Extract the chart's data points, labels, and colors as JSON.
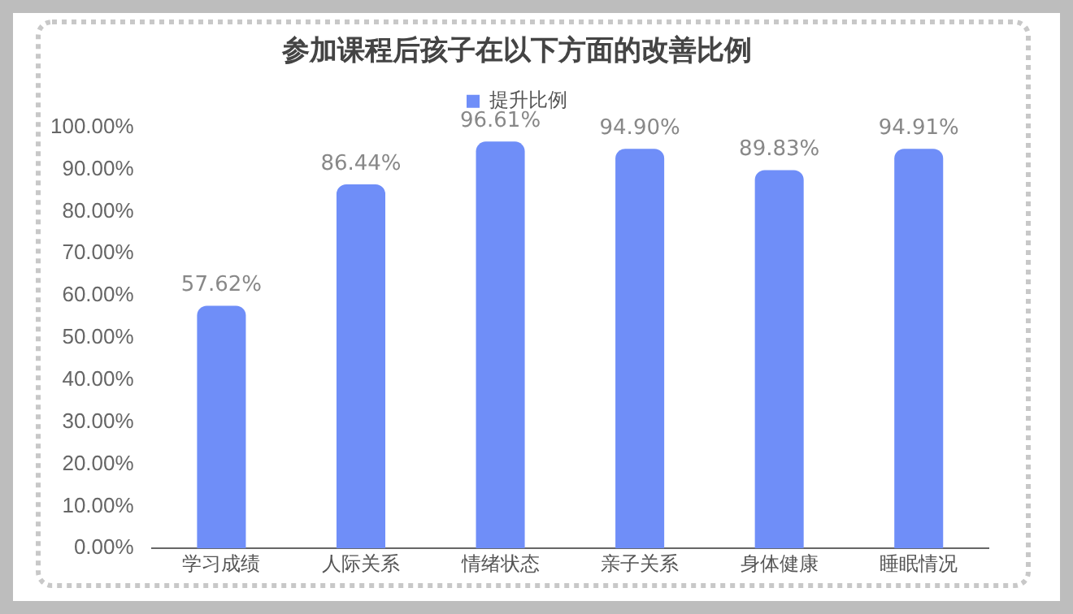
{
  "chart_data": {
    "type": "bar",
    "title": "参加课程后孩子在以下方面的改善比例",
    "categories": [
      "学习成绩",
      "人际关系",
      "情绪状态",
      "亲子关系",
      "身体健康",
      "睡眠情况"
    ],
    "series": [
      {
        "name": "提升比例",
        "color": "#6f8ef8",
        "values": [
          57.62,
          86.44,
          96.61,
          94.9,
          89.83,
          94.91
        ],
        "value_labels": [
          "57.62%",
          "86.44%",
          "96.61%",
          "94.90%",
          "89.83%",
          "94.91%"
        ]
      }
    ],
    "ylim": [
      0,
      100
    ],
    "yticks": [
      {
        "value": 0,
        "label": "0.00%"
      },
      {
        "value": 10,
        "label": "10.00%"
      },
      {
        "value": 20,
        "label": "20.00%"
      },
      {
        "value": 30,
        "label": "30.00%"
      },
      {
        "value": 40,
        "label": "40.00%"
      },
      {
        "value": 50,
        "label": "50.00%"
      },
      {
        "value": 60,
        "label": "60.00%"
      },
      {
        "value": 70,
        "label": "70.00%"
      },
      {
        "value": 80,
        "label": "80.00%"
      },
      {
        "value": 90,
        "label": "90.00%"
      },
      {
        "value": 100,
        "label": "100.00%"
      }
    ],
    "grid": false,
    "legend": "top"
  }
}
